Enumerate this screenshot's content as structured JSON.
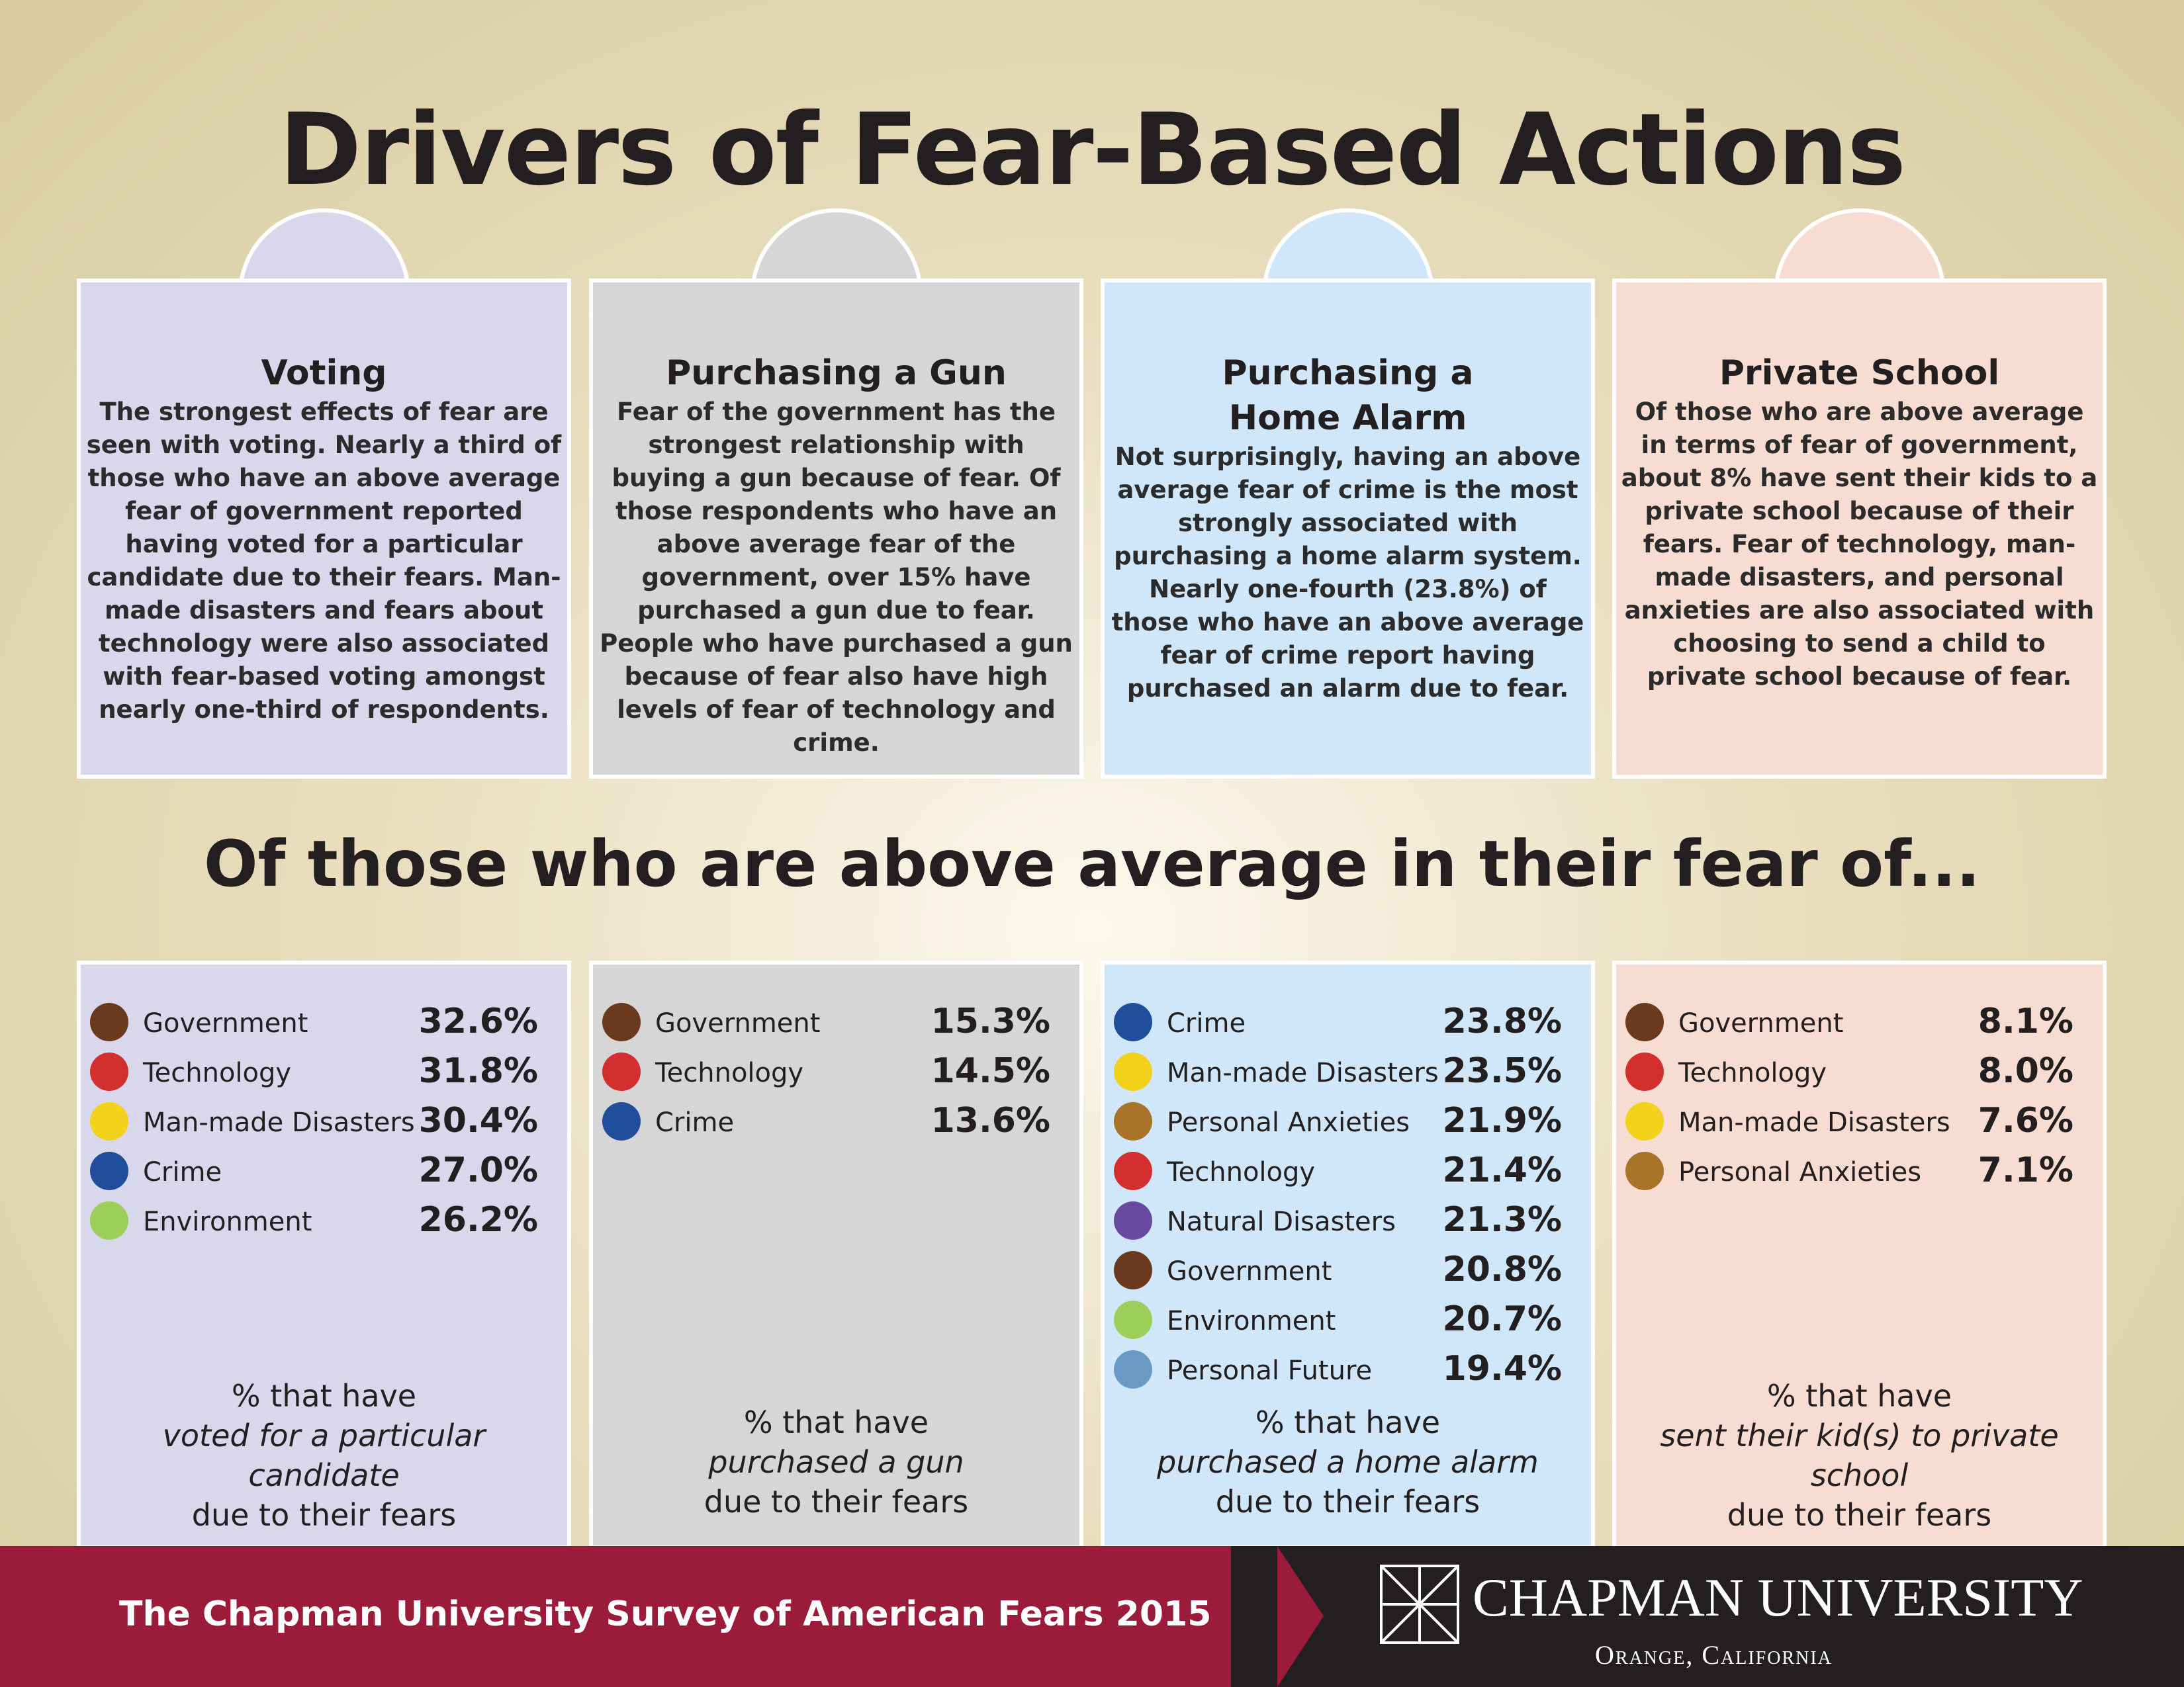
{
  "header": {
    "title": "Drivers of Fear-Based Actions",
    "subtitle": "Of those who are above average in their fear of..."
  },
  "columns": [
    {
      "title": "Voting",
      "background": "#d9d7eb",
      "body": "The strongest effects of fear are seen with voting. Nearly a third of those who have an above average fear of government reported having voted for a particular candidate due to their fears. Man-made disasters and fears about technology were also associated with fear-based voting amongst nearly one-third of respondents.",
      "items": [
        {
          "label": "Government",
          "value": "32.6%",
          "color": "#6b3a1e"
        },
        {
          "label": "Technology",
          "value": "31.8%",
          "color": "#d32f2f"
        },
        {
          "label": "Man-made Disasters",
          "value": "30.4%",
          "color": "#f2d21b"
        },
        {
          "label": "Crime",
          "value": "27.0%",
          "color": "#1f4f9a"
        },
        {
          "label": "Environment",
          "value": "26.2%",
          "color": "#9ccf5a"
        }
      ],
      "caption": {
        "lead": "% that have",
        "emphasis": "voted for a particular candidate",
        "tail": "due to their fears"
      }
    },
    {
      "title": "Purchasing a Gun",
      "background": "#d6d6d6",
      "body": "Fear of the government has the strongest relationship with buying a gun because of fear. Of those respondents who have an above average fear of the government, over 15% have purchased a gun due to fear. People who have purchased a gun because of fear also have high levels of fear of technology and crime.",
      "items": [
        {
          "label": "Government",
          "value": "15.3%",
          "color": "#6b3a1e"
        },
        {
          "label": "Technology",
          "value": "14.5%",
          "color": "#d32f2f"
        },
        {
          "label": "Crime",
          "value": "13.6%",
          "color": "#1f4f9a"
        }
      ],
      "caption": {
        "lead": "% that have",
        "emphasis": "purchased a gun",
        "tail": "due to their fears"
      }
    },
    {
      "title": "Purchasing a Home Alarm",
      "background": "#cfe7f8",
      "body": "Not surprisingly, having an above average fear of crime is the most strongly associated with purchasing a home alarm system. Nearly one-fourth (23.8%) of those who have an above average fear of crime report having purchased an alarm due to fear.",
      "items": [
        {
          "label": "Crime",
          "value": "23.8%",
          "color": "#1f4f9a"
        },
        {
          "label": "Man-made Disasters",
          "value": "23.5%",
          "color": "#f2d21b"
        },
        {
          "label": "Personal Anxieties",
          "value": "21.9%",
          "color": "#a8742a"
        },
        {
          "label": "Technology",
          "value": "21.4%",
          "color": "#d32f2f"
        },
        {
          "label": "Natural Disasters",
          "value": "21.3%",
          "color": "#6a4aa0"
        },
        {
          "label": "Government",
          "value": "20.8%",
          "color": "#6b3a1e"
        },
        {
          "label": "Environment",
          "value": "20.7%",
          "color": "#9ccf5a"
        },
        {
          "label": "Personal Future",
          "value": "19.4%",
          "color": "#6b9bc4"
        }
      ],
      "caption": {
        "lead": "% that have",
        "emphasis": "purchased a home alarm",
        "tail": "due to their fears"
      }
    },
    {
      "title": "Private School",
      "background": "#f7dcd1",
      "body": "Of those who are above average in terms of fear of government, about 8% have sent their kids to a private school because of their fears. Fear of technology, man-made disasters, and personal anxieties are also associated with choosing to send a child to private school because of fear.",
      "items": [
        {
          "label": "Government",
          "value": "8.1%",
          "color": "#6b3a1e"
        },
        {
          "label": "Technology",
          "value": "8.0%",
          "color": "#d32f2f"
        },
        {
          "label": "Man-made Disasters",
          "value": "7.6%",
          "color": "#f2d21b"
        },
        {
          "label": "Personal Anxieties",
          "value": "7.1%",
          "color": "#a8742a"
        }
      ],
      "caption": {
        "lead": "% that have",
        "emphasis": "sent their kid(s) to private school",
        "tail": "due to their fears"
      }
    }
  ],
  "footer": {
    "survey": "The Chapman University Survey of American Fears 2015",
    "university": "CHAPMAN UNIVERSITY",
    "location": "Orange, California"
  }
}
